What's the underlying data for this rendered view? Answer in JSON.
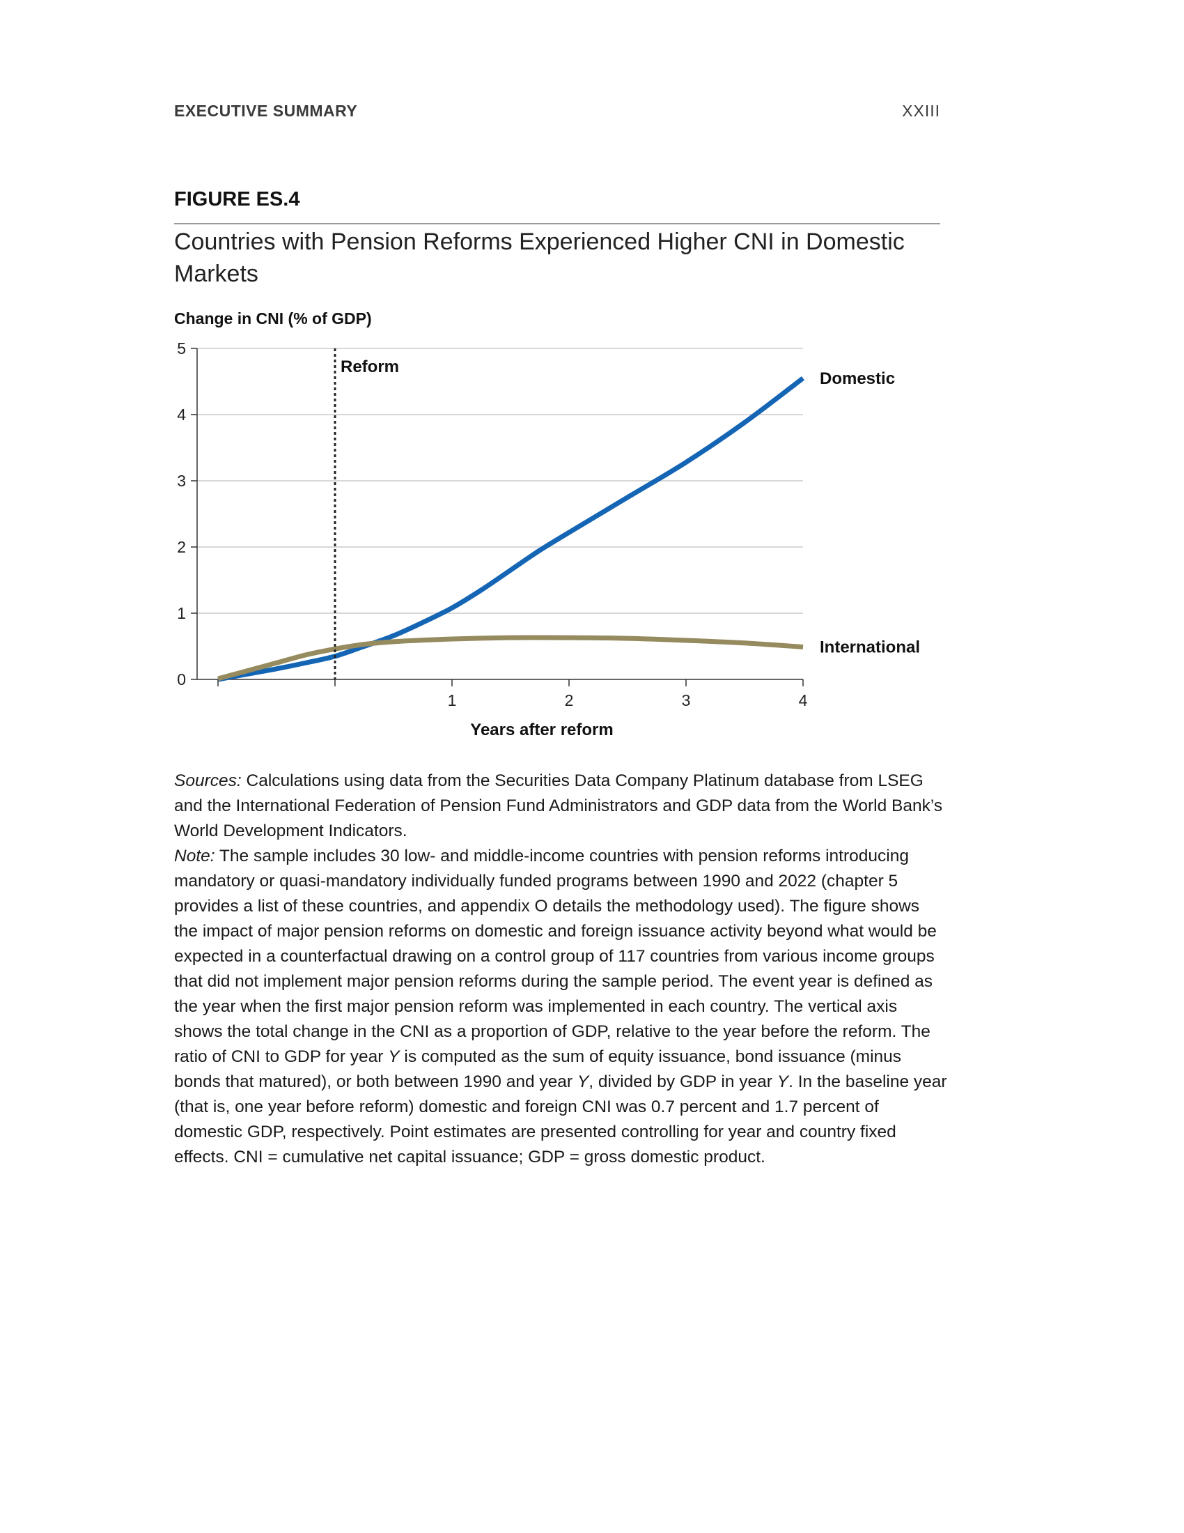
{
  "running_head": {
    "section": "EXECUTIVE SUMMARY",
    "page": "XXIII"
  },
  "figure": {
    "label": "FIGURE ES.4",
    "title": "Countries with Pension Reforms Experienced Higher CNI in Domestic Markets"
  },
  "chart_data": {
    "type": "line",
    "title": "Countries with Pension Reforms Experienced Higher CNI in Domestic Markets",
    "ylabel": "Change in CNI (% of GDP)",
    "xlabel": "Years after reform",
    "xlim": [
      -1,
      4
    ],
    "ylim": [
      0,
      5
    ],
    "xticks": [
      1,
      2,
      3,
      4
    ],
    "yticks": [
      0,
      1,
      2,
      3,
      4,
      5
    ],
    "grid": true,
    "reform_marker": {
      "x": 0,
      "label": "Reform"
    },
    "series": [
      {
        "name": "Domestic",
        "color": "#1565b5",
        "x": [
          -1,
          -0.75,
          -0.5,
          -0.25,
          0,
          0.25,
          0.5,
          0.75,
          1,
          1.25,
          1.5,
          1.75,
          2,
          2.5,
          3,
          3.5,
          4
        ],
        "y": [
          -0.05,
          0.08,
          0.16,
          0.25,
          0.35,
          0.5,
          0.66,
          0.86,
          1.08,
          1.35,
          1.65,
          1.95,
          2.22,
          2.75,
          3.28,
          3.88,
          4.55
        ]
      },
      {
        "name": "International",
        "color": "#958b5e",
        "x": [
          -1,
          -0.75,
          -0.5,
          -0.25,
          0,
          0.25,
          0.5,
          1,
          1.5,
          2,
          2.5,
          3,
          3.5,
          4
        ],
        "y": [
          0.01,
          0.13,
          0.25,
          0.37,
          0.46,
          0.53,
          0.57,
          0.61,
          0.63,
          0.63,
          0.62,
          0.59,
          0.55,
          0.49
        ]
      }
    ]
  },
  "notes": {
    "sources_label": "Sources:",
    "sources_text": " Calculations using data from the Securities Data Company Platinum database from LSEG and the International Federation of Pension Fund Administrators and GDP data from the World Bank’s World Development Indicators.",
    "note_label": "Note:",
    "note_part1": " The sample includes 30 low- and middle-income countries with pension reforms introducing mandatory or quasi-mandatory individually funded programs between 1990 and 2022 (chapter 5 provides a list of these countries, and appendix O details the methodology used). The figure shows the impact of major pension reforms on domestic and foreign issuance activity beyond what would be expected in a counterfactual drawing on a control group of 117 countries from various income groups that did not implement major pension reforms during the sample period. The event year is defined as the year when the first major pension reform was implemented in each country. The vertical axis shows the total change in the CNI as a proportion of GDP, relative to the year before the reform. The ratio of CNI to GDP for year ",
    "y1": "Y",
    "note_part2": " is computed as the sum of equity issuance, bond issuance (minus bonds that matured), or both between 1990 and year ",
    "y2": "Y",
    "note_part3": ", divided by GDP in year ",
    "y3": "Y",
    "note_part4": ". In the baseline year (that is, one year before reform) domestic and foreign CNI was 0.7 percent and 1.7 percent of domestic GDP, respectively. Point estimates are presented controlling for year and country fixed effects. CNI = cumulative net capital issuance; GDP = gross domestic product."
  }
}
